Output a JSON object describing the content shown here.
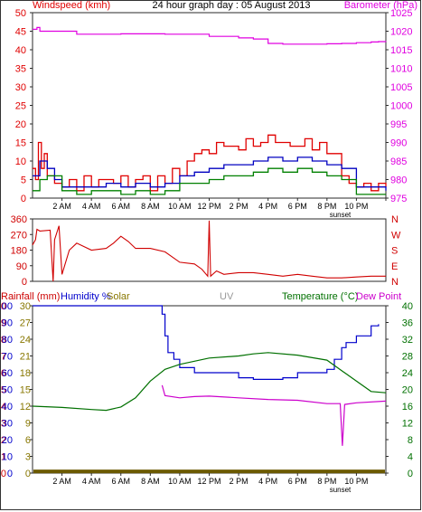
{
  "colors": {
    "frame": "#2a2a2a",
    "gust": "#e00000",
    "average": "#0000c0",
    "speed": "#008000",
    "barometer": "#e000e0",
    "direction": "#d00000",
    "rainfall": "#cc0000",
    "humidity": "#0000cc",
    "solar": "#6b5a00",
    "uv": "#999999",
    "temperature": "#007000",
    "dewpoint": "#cc00cc",
    "rain_axis": "#cc0000",
    "hum_axis": "#0000cc",
    "solar_axis": "#887700",
    "temp_axis": "#007000"
  },
  "header": {
    "windspeed_label": "Windspeed (kmh)",
    "title": "24 hour graph day : 05 August 2013",
    "barometer_label": "Barometer (hPa)"
  },
  "mid_labels": {
    "rainfall": "Rainfall (mm)",
    "humidity": "Humidity %",
    "solar": "Solar",
    "uv": "UV",
    "temperature": "Temperature (°C)",
    "dewpoint": "Dew Point"
  },
  "x_axis": {
    "ticks": [
      "2 AM",
      "4 AM",
      "6 AM",
      "8 AM",
      "10 AM",
      "12 PM",
      "2 PM",
      "4 PM",
      "6 PM",
      "8 PM",
      "10 PM"
    ],
    "sunset_label": "sunset",
    "sunset_hour": 20.9
  },
  "chart_data": [
    {
      "type": "line",
      "title": "24 hour graph day : 05 August 2013",
      "x_unit": "hour of day",
      "xlim": [
        0,
        24
      ],
      "y_left": {
        "label": "Windspeed (kmh)",
        "lim": [
          0,
          50
        ],
        "ticks": [
          "0",
          "5",
          "10",
          "15",
          "20",
          "25",
          "30",
          "35",
          "40",
          "45",
          "50"
        ]
      },
      "y_right": {
        "label": "Barometer (hPa)",
        "lim": [
          975,
          1025
        ],
        "ticks": [
          "975",
          "980",
          "985",
          "990",
          "995",
          "1000",
          "1005",
          "1010",
          "1015",
          "1020",
          "1025"
        ]
      },
      "series": [
        {
          "name": "gust",
          "axis": "left",
          "x": [
            0,
            0.2,
            0.4,
            0.6,
            0.8,
            1,
            1.5,
            2,
            2.5,
            3,
            3.5,
            4,
            4.5,
            5,
            5.5,
            6,
            6.5,
            7,
            7.5,
            8,
            8.5,
            9,
            9.5,
            10,
            10.5,
            11,
            11.5,
            12,
            12.5,
            13,
            13.5,
            14,
            14.5,
            15,
            15.5,
            16,
            16.5,
            17,
            17.5,
            18,
            18.5,
            19,
            19.5,
            20,
            20.5,
            21,
            21.5,
            22,
            22.5,
            23,
            23.5,
            24
          ],
          "values": [
            8,
            5,
            15,
            8,
            12,
            6,
            4,
            3,
            5,
            2,
            6,
            3,
            5,
            5,
            4,
            6,
            3,
            5,
            6,
            2,
            6,
            4,
            8,
            6,
            10,
            12,
            13,
            12,
            15,
            14,
            14,
            13,
            16,
            14,
            15,
            17,
            15,
            15,
            14,
            14,
            16,
            13,
            15,
            12,
            12,
            6,
            4,
            3,
            4,
            2,
            4,
            3
          ]
        },
        {
          "name": "average",
          "axis": "left",
          "x": [
            0,
            0.5,
            1,
            1.5,
            2,
            3,
            4,
            5,
            6,
            7,
            8,
            9,
            10,
            11,
            12,
            13,
            14,
            15,
            16,
            17,
            18,
            19,
            20,
            21,
            22,
            23,
            24
          ],
          "values": [
            6,
            10,
            8,
            5,
            3,
            3,
            3,
            4,
            3,
            4,
            3,
            4,
            6,
            7,
            8,
            9,
            9,
            10,
            11,
            10,
            11,
            10,
            9,
            8,
            3,
            3,
            2
          ]
        },
        {
          "name": "speed",
          "axis": "left",
          "x": [
            0,
            0.5,
            1,
            2,
            3,
            4,
            5,
            6,
            7,
            8,
            9,
            10,
            11,
            12,
            13,
            14,
            15,
            16,
            17,
            18,
            19,
            20,
            21,
            22,
            23,
            24
          ],
          "values": [
            2,
            5,
            6,
            2,
            1,
            2,
            2,
            1,
            2,
            1,
            2,
            4,
            4,
            5,
            6,
            6,
            7,
            8,
            7,
            8,
            7,
            6,
            5,
            1,
            1,
            1
          ]
        },
        {
          "name": "barometer",
          "axis": "right",
          "x": [
            0,
            0.3,
            0.5,
            1,
            3,
            6,
            9,
            12,
            14,
            15,
            16,
            17,
            18,
            19,
            20,
            21,
            22,
            23,
            23.5,
            24
          ],
          "values": [
            1020.5,
            1021,
            1020,
            1020,
            1019.2,
            1019.3,
            1019.2,
            1018.6,
            1018.2,
            1017.9,
            1016.7,
            1016.5,
            1016.5,
            1016.5,
            1016.6,
            1016.7,
            1016.9,
            1017.1,
            1017.2,
            1017.1
          ]
        }
      ]
    },
    {
      "type": "line",
      "title": "",
      "x_unit": "hour of day",
      "xlim": [
        0,
        24
      ],
      "y_left": {
        "label": "",
        "lim": [
          0,
          360
        ],
        "ticks": [
          "0",
          "90",
          "180",
          "270",
          "360"
        ]
      },
      "y_right": {
        "label": "",
        "ticks": [
          "N",
          "E",
          "S",
          "W",
          "N"
        ]
      },
      "series": [
        {
          "name": "wind direction",
          "x": [
            0,
            0.2,
            0.3,
            0.5,
            1.2,
            1.4,
            1.5,
            1.8,
            2,
            2.5,
            3,
            4,
            5,
            5.5,
            6,
            6.5,
            7,
            8,
            9,
            10,
            11,
            11.5,
            11.9,
            12,
            12.1,
            12.5,
            13,
            14,
            15,
            16,
            17,
            18,
            19,
            20,
            21,
            22,
            23,
            24
          ],
          "values": [
            210,
            240,
            300,
            290,
            295,
            0,
            240,
            320,
            40,
            180,
            220,
            180,
            190,
            220,
            260,
            230,
            190,
            190,
            170,
            110,
            100,
            70,
            30,
            350,
            30,
            60,
            40,
            50,
            50,
            40,
            30,
            40,
            30,
            20,
            20,
            25,
            30,
            30
          ]
        }
      ]
    },
    {
      "type": "line",
      "title": "",
      "x_unit": "hour of day",
      "xlim": [
        0,
        24
      ],
      "y_axes": [
        {
          "label": "Rainfall (mm)",
          "lim": [
            0,
            10
          ],
          "ticks": [
            "0",
            "1",
            "2",
            "3",
            "4",
            "5",
            "6",
            "7",
            "8",
            "9",
            "10"
          ]
        },
        {
          "label": "Humidity %",
          "lim": [
            0,
            100
          ],
          "ticks": [
            "0",
            "10",
            "20",
            "30",
            "40",
            "50",
            "60",
            "70",
            "80",
            "90",
            "100"
          ]
        },
        {
          "label": "Solar",
          "lim": [
            0,
            30
          ],
          "ticks": [
            "0",
            "3",
            "6",
            "9",
            "12",
            "15",
            "18",
            "21",
            "24",
            "27",
            "30"
          ]
        },
        {
          "label": "Temperature (°C)",
          "lim": [
            0,
            40
          ],
          "ticks": [
            "0",
            "4",
            "8",
            "12",
            "16",
            "20",
            "24",
            "28",
            "32",
            "36",
            "40"
          ]
        }
      ],
      "series": [
        {
          "name": "humidity",
          "axis": "humidity",
          "x": [
            0,
            8.5,
            8.8,
            9,
            9.2,
            9.6,
            10,
            11,
            12,
            13,
            14,
            15,
            16,
            17,
            18,
            19,
            20,
            20.5,
            21,
            21.3,
            22,
            23,
            23.5
          ],
          "values": [
            100,
            100,
            95,
            82,
            72,
            68,
            63,
            60,
            60,
            60,
            57,
            56,
            56,
            57,
            60,
            60,
            62,
            68,
            75,
            78,
            82,
            88,
            89
          ]
        },
        {
          "name": "temperature",
          "axis": "temperature",
          "x": [
            0,
            2,
            4,
            5,
            6,
            7,
            8,
            9,
            10,
            12,
            14,
            15,
            16,
            18,
            20,
            21,
            22,
            23,
            24
          ],
          "values": [
            16,
            15.7,
            15.2,
            15,
            15.8,
            18,
            22,
            24.8,
            26,
            27.5,
            28,
            28.5,
            28.8,
            28.2,
            27,
            24.5,
            22,
            19.5,
            19.2
          ]
        },
        {
          "name": "dew point",
          "axis": "temperature",
          "x": [
            8.8,
            9,
            10,
            11,
            12,
            14,
            16,
            18,
            20,
            20.9,
            21.05,
            21.2,
            22,
            24
          ],
          "values": [
            21,
            18.5,
            18,
            18.3,
            18.4,
            18,
            17.6,
            17.4,
            16.6,
            16.6,
            6.5,
            16.4,
            16.8,
            17.2
          ]
        },
        {
          "name": "solar",
          "axis": "solar",
          "x": [
            0,
            24
          ],
          "values": [
            0.3,
            0.3
          ]
        }
      ]
    }
  ]
}
